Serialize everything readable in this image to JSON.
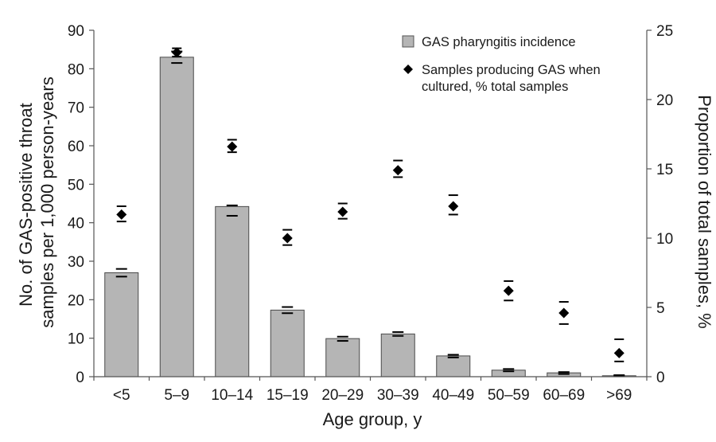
{
  "chart_data": {
    "type": "bar",
    "xlabel": "Age group, y",
    "ylabel_left_lines": [
      "No. of GAS-positive throat",
      "samples per 1,000 person-years"
    ],
    "ylabel_right": "Proportion of total samples, %",
    "categories": [
      "<5",
      "5–9",
      "10–14",
      "15–19",
      "20–29",
      "30–39",
      "40–49",
      "50–59",
      "60–69",
      ">69"
    ],
    "y_left": {
      "lim": [
        0,
        90
      ],
      "ticks": [
        0,
        10,
        20,
        30,
        40,
        50,
        60,
        70,
        80,
        90
      ]
    },
    "y_right": {
      "lim": [
        0,
        25
      ],
      "ticks": [
        0,
        5,
        10,
        15,
        20,
        25
      ]
    },
    "series": [
      {
        "name": "GAS pharyngitis incidence",
        "kind": "bar",
        "axis": "left",
        "color": "#b5b5b5",
        "values": [
          27,
          83,
          44.2,
          17.3,
          9.9,
          11.1,
          5.4,
          1.7,
          1.0,
          0.25
        ],
        "err_low": [
          26,
          81.5,
          41.8,
          16.5,
          9.3,
          10.6,
          5.0,
          1.4,
          0.7,
          0.1
        ],
        "err_high": [
          28,
          84.5,
          44.5,
          18.1,
          10.4,
          11.6,
          5.7,
          2.0,
          1.2,
          0.4
        ]
      },
      {
        "name_lines": [
          "Samples producing GAS when",
          "cultured, % total samples"
        ],
        "kind": "scatter",
        "axis": "right",
        "marker": "diamond",
        "color": "#000000",
        "values": [
          11.7,
          23.4,
          16.6,
          10.0,
          11.9,
          14.9,
          12.3,
          6.2,
          4.6,
          1.7
        ],
        "err_low": [
          11.2,
          23.1,
          16.2,
          9.5,
          11.4,
          14.4,
          11.7,
          5.5,
          3.8,
          1.1
        ],
        "err_high": [
          12.3,
          23.7,
          17.1,
          10.6,
          12.5,
          15.6,
          13.1,
          6.9,
          5.4,
          2.7
        ]
      }
    ]
  }
}
